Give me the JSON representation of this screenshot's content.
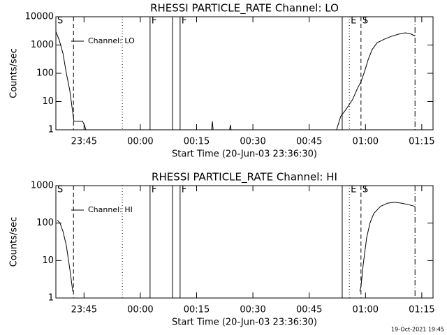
{
  "chart_data": [
    {
      "type": "line",
      "title": "RHESSI PARTICLE_RATE Channel: LO",
      "xlabel": "Start Time (20-Jun-03 23:36:30)",
      "ylabel": "Counts/sec",
      "x": [
        1417.5,
        1418.4,
        1419.4,
        1420.3,
        1421.2,
        1422.0,
        1422.3,
        1424.6,
        1425.1,
        1425.5,
        1440,
        1459.0,
        1459.2,
        1459.4,
        1462,
        1463.8,
        1464.0,
        1464.2,
        1478,
        1492.3,
        1493.4,
        1494.7,
        1496.6,
        1497.9,
        1498.8,
        1499.8,
        1500.7,
        1501.8,
        1503.1,
        1505.0,
        1506.8,
        1508.7,
        1510.6,
        1512.0,
        1513.2
      ],
      "series": [
        {
          "name": "Channel: LO",
          "color": "#000000",
          "values": [
            3000,
            1500,
            500,
            100,
            25,
            4,
            2,
            2,
            1.5,
            1,
            null,
            1,
            2,
            1,
            null,
            1,
            1.5,
            1,
            null,
            1,
            3,
            5,
            12,
            30,
            50,
            120,
            300,
            700,
            1200,
            1600,
            2000,
            2400,
            2700,
            2500,
            2100
          ]
        }
      ],
      "xlim": [
        1417.5,
        1518
      ],
      "xticks": [
        {
          "value": 1425,
          "label": "23:45"
        },
        {
          "value": 1440,
          "label": "00:00"
        },
        {
          "value": 1455,
          "label": "00:15"
        },
        {
          "value": 1470,
          "label": "00:30"
        },
        {
          "value": 1485,
          "label": "00:45"
        },
        {
          "value": 1500,
          "label": "01:00"
        },
        {
          "value": 1515,
          "label": "01:15"
        }
      ],
      "ylim": [
        1,
        10000
      ],
      "yticks": [
        1,
        10,
        100,
        1000,
        10000
      ],
      "log_y": true,
      "legend": "upper left",
      "markers": [
        {
          "x": 1417.5,
          "label": "S",
          "style": "solid"
        },
        {
          "x": 1422.2,
          "style": "dashed"
        },
        {
          "x": 1435.2,
          "style": "dotted"
        },
        {
          "x": 1442.6,
          "label": "F",
          "style": "solid"
        },
        {
          "x": 1448.6,
          "style": "solid"
        },
        {
          "x": 1450.6,
          "label": "F",
          "style": "solid"
        },
        {
          "x": 1493.8,
          "style": "solid"
        },
        {
          "x": 1495.7,
          "label": "E",
          "style": "dotted"
        },
        {
          "x": 1498.8,
          "label": "S",
          "style": "dashed"
        },
        {
          "x": 1513.2,
          "style": "dashdot"
        }
      ]
    },
    {
      "type": "line",
      "title": "RHESSI PARTICLE_RATE Channel: HI",
      "xlabel": "Start Time (20-Jun-03 23:36:30)",
      "ylabel": "Counts/sec",
      "x": [
        1417.9,
        1418.6,
        1419.4,
        1420.3,
        1421.2,
        1422.0,
        1460,
        1498.5,
        1498.8,
        1499.4,
        1500.3,
        1501.2,
        1502.2,
        1504.0,
        1505.9,
        1507.8,
        1509.6,
        1511.5,
        1513.2
      ],
      "series": [
        {
          "name": "Channel: HI",
          "color": "#000000",
          "values": [
            120,
            100,
            60,
            25,
            6,
            1.5,
            null,
            1.5,
            2,
            8,
            40,
            100,
            180,
            280,
            340,
            360,
            340,
            310,
            280
          ]
        }
      ],
      "xlim": [
        1417.5,
        1518
      ],
      "xticks": [
        {
          "value": 1425,
          "label": "23:45"
        },
        {
          "value": 1440,
          "label": "00:00"
        },
        {
          "value": 1455,
          "label": "00:15"
        },
        {
          "value": 1470,
          "label": "00:30"
        },
        {
          "value": 1485,
          "label": "00:45"
        },
        {
          "value": 1500,
          "label": "01:00"
        },
        {
          "value": 1515,
          "label": "01:15"
        }
      ],
      "ylim": [
        1,
        1000
      ],
      "yticks": [
        1,
        10,
        100,
        1000
      ],
      "log_y": true,
      "legend": "upper left",
      "markers": [
        {
          "x": 1417.5,
          "label": "S",
          "style": "solid"
        },
        {
          "x": 1422.2,
          "style": "dashed"
        },
        {
          "x": 1435.2,
          "style": "dotted"
        },
        {
          "x": 1442.6,
          "label": "F",
          "style": "solid"
        },
        {
          "x": 1448.6,
          "style": "solid"
        },
        {
          "x": 1450.6,
          "label": "F",
          "style": "solid"
        },
        {
          "x": 1493.8,
          "style": "solid"
        },
        {
          "x": 1495.7,
          "label": "E",
          "style": "dotted"
        },
        {
          "x": 1498.8,
          "label": "S",
          "style": "dashed"
        },
        {
          "x": 1513.2,
          "style": "dashdot"
        }
      ]
    }
  ],
  "footer": "19-Oct-2021 19:45"
}
